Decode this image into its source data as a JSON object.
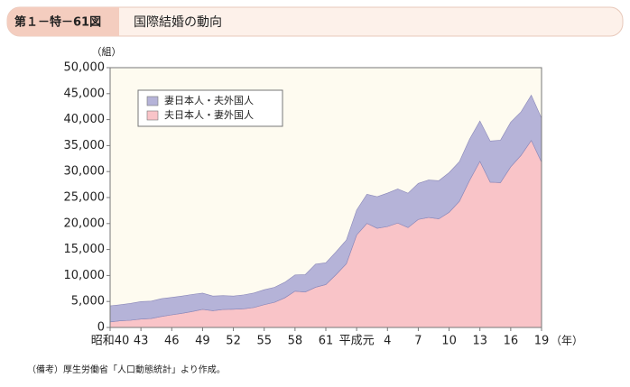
{
  "header": {
    "figure_no": "第１－特－61図",
    "title": "国際結婚の動向"
  },
  "chart_data": {
    "type": "stacked_area",
    "y_unit": "（組）",
    "x_unit": "（年）",
    "note": "（備考）厚生労働省「人口動態統計」より作成。",
    "categories": [
      "昭和40",
      null,
      null,
      "43",
      null,
      null,
      "46",
      null,
      null,
      "49",
      null,
      null,
      "52",
      null,
      null,
      "55",
      null,
      null,
      "58",
      null,
      null,
      "61",
      null,
      null,
      "平成元",
      null,
      null,
      "4",
      null,
      null,
      "7",
      null,
      null,
      "10",
      null,
      null,
      "13",
      null,
      null,
      "16",
      null,
      null,
      "19"
    ],
    "series": [
      {
        "name": "夫日本人・妻外国人",
        "color": "#f9c4c8",
        "values": [
          1067,
          1291,
          1389,
          1622,
          1731,
          2108,
          2429,
          2718,
          3077,
          3488,
          3222,
          3465,
          3508,
          3584,
          3840,
          4386,
          4836,
          5698,
          6985,
          6829,
          7738,
          8255,
          10176,
          12267,
          17800,
          20026,
          19096,
          19423,
          20092,
          19216,
          20787,
          21162,
          20902,
          22159,
          24272,
          28326,
          31972,
          27957,
          27881,
          30907,
          33116,
          35993,
          31807
        ]
      },
      {
        "name": "妻日本人・夫外国人",
        "color": "#b5b3d8",
        "values": [
          3089,
          3079,
          3237,
          3358,
          3342,
          3438,
          3361,
          3334,
          3281,
          3122,
          2823,
          2665,
          2543,
          2689,
          2785,
          2875,
          2890,
          2993,
          3120,
          3345,
          4443,
          4190,
          4400,
          4550,
          4800,
          5600,
          6063,
          6439,
          6565,
          6616,
          6940,
          7210,
          7349,
          7636,
          7628,
          7937,
          7755,
          7922,
          8158,
          8604,
          8365,
          8708,
          8465
        ]
      }
    ],
    "ylim": [
      0,
      50000
    ],
    "yticks": [
      0,
      {
        "value": 5000,
        "label": "5,000"
      },
      {
        "value": 10000,
        "label": "10,000"
      },
      {
        "value": 15000,
        "label": "15,000"
      },
      {
        "value": 20000,
        "label": "20,000"
      },
      {
        "value": 25000,
        "label": "25,000"
      },
      {
        "value": 30000,
        "label": "30,000"
      },
      {
        "value": 35000,
        "label": "35,000"
      },
      {
        "value": 40000,
        "label": "40,000"
      },
      {
        "value": 45000,
        "label": "45,000"
      },
      {
        "value": 50000,
        "label": "50,000"
      }
    ]
  }
}
